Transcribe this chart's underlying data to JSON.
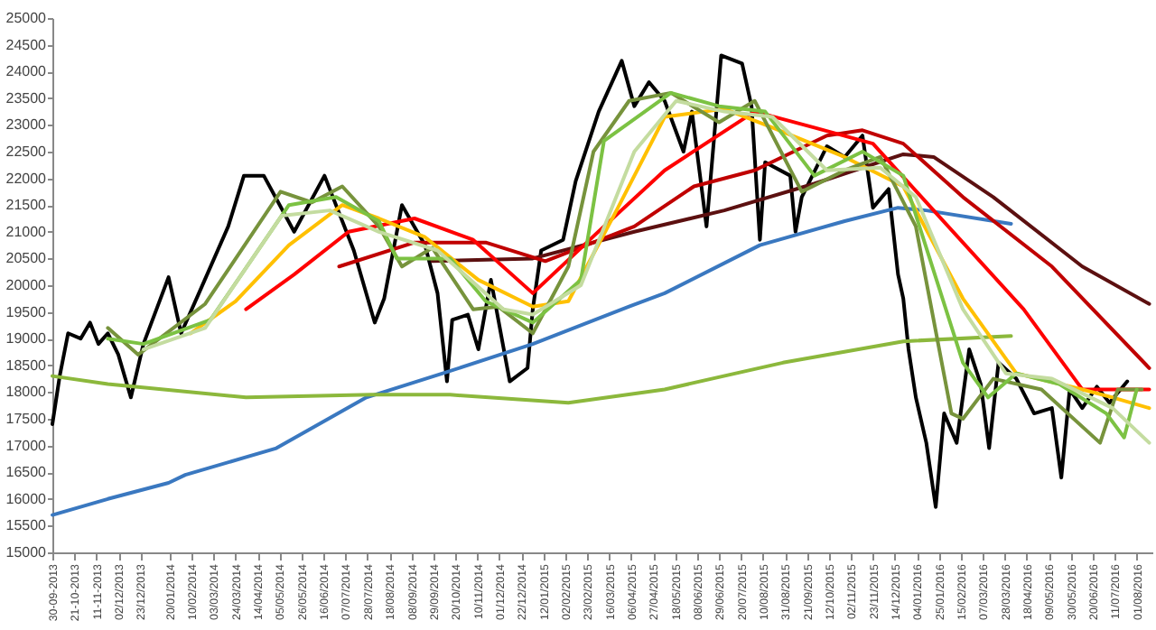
{
  "chart_data": {
    "type": "line",
    "xlim": [
      "2013-09-30",
      "2016-08-16"
    ],
    "ylim": [
      15000,
      25000
    ],
    "yticks": [
      15000,
      15500,
      16000,
      16500,
      17000,
      17500,
      18000,
      18500,
      19000,
      19500,
      20000,
      20500,
      21000,
      21500,
      22000,
      22500,
      23000,
      23500,
      24000,
      24500,
      25000
    ],
    "xticks": [
      {
        "value": "2013-09-30",
        "label": "30-09-2013"
      },
      {
        "value": "2013-10-21",
        "label": "21-10-2013"
      },
      {
        "value": "2013-11-11",
        "label": "11-11-2013"
      },
      {
        "value": "2013-12-02",
        "label": "02/12/2013"
      },
      {
        "value": "2013-12-23",
        "label": "23/12/2013"
      },
      {
        "value": "2014-01-20",
        "label": "20/01/2014"
      },
      {
        "value": "2014-02-10",
        "label": "10/02/2014"
      },
      {
        "value": "2014-03-03",
        "label": "03/03/2014"
      },
      {
        "value": "2014-03-24",
        "label": "24/03/2014"
      },
      {
        "value": "2014-04-14",
        "label": "14/04/2014"
      },
      {
        "value": "2014-05-05",
        "label": "05/05/2014"
      },
      {
        "value": "2014-05-26",
        "label": "26/05/2014"
      },
      {
        "value": "2014-06-16",
        "label": "16/06/2014"
      },
      {
        "value": "2014-07-07",
        "label": "07/07/2014"
      },
      {
        "value": "2014-07-28",
        "label": "28/07/2014"
      },
      {
        "value": "2014-08-18",
        "label": "18/08/2014"
      },
      {
        "value": "2014-09-08",
        "label": "08/09/2014"
      },
      {
        "value": "2014-09-29",
        "label": "29/09/2014"
      },
      {
        "value": "2014-10-20",
        "label": "20/10/2014"
      },
      {
        "value": "2014-11-10",
        "label": "10/11/2014"
      },
      {
        "value": "2014-12-01",
        "label": "01/12/2014"
      },
      {
        "value": "2014-12-22",
        "label": "22/12/2014"
      },
      {
        "value": "2015-01-12",
        "label": "12/01/2015"
      },
      {
        "value": "2015-02-02",
        "label": "02/02/2015"
      },
      {
        "value": "2015-02-23",
        "label": "23/02/2015"
      },
      {
        "value": "2015-03-16",
        "label": "16/03/2015"
      },
      {
        "value": "2015-04-06",
        "label": "06/04/2015"
      },
      {
        "value": "2015-04-27",
        "label": "27/04/2015"
      },
      {
        "value": "2015-05-18",
        "label": "18/05/2015"
      },
      {
        "value": "2015-06-08",
        "label": "08/06/2015"
      },
      {
        "value": "2015-06-29",
        "label": "29/06/2015"
      },
      {
        "value": "2015-07-20",
        "label": "20/07/2015"
      },
      {
        "value": "2015-08-10",
        "label": "10/08/2015"
      },
      {
        "value": "2015-08-31",
        "label": "31/08/2015"
      },
      {
        "value": "2015-09-21",
        "label": "21/09/2015"
      },
      {
        "value": "2015-10-12",
        "label": "12/10/2015"
      },
      {
        "value": "2015-11-02",
        "label": "02/11/2015"
      },
      {
        "value": "2015-11-23",
        "label": "23/11/2015"
      },
      {
        "value": "2015-12-14",
        "label": "14/12/2015"
      },
      {
        "value": "2016-01-04",
        "label": "04/01/2016"
      },
      {
        "value": "2016-01-25",
        "label": "25/01/2016"
      },
      {
        "value": "2016-02-15",
        "label": "15/02/2016"
      },
      {
        "value": "2016-03-07",
        "label": "07/03/2016"
      },
      {
        "value": "2016-03-28",
        "label": "28/03/2016"
      },
      {
        "value": "2016-04-18",
        "label": "18/04/2016"
      },
      {
        "value": "2016-05-09",
        "label": "09/05/2016"
      },
      {
        "value": "2016-05-30",
        "label": "30/05/2016"
      },
      {
        "value": "2016-06-20",
        "label": "20/06/2016"
      },
      {
        "value": "2016-07-11",
        "label": "11/07/2016"
      },
      {
        "value": "2016-08-01",
        "label": "01/08/2016"
      }
    ],
    "series": [
      {
        "color": "#000000",
        "x": [
          "2013-09-30",
          "2013-10-07",
          "2013-10-15",
          "2013-10-27",
          "2013-11-05",
          "2013-11-13",
          "2013-11-22",
          "2013-12-02",
          "2013-12-14",
          "2013-12-26",
          "2014-01-19",
          "2014-01-31",
          "2014-02-17",
          "2014-03-17",
          "2014-04-01",
          "2014-04-20",
          "2014-05-19",
          "2014-06-17",
          "2014-07-04",
          "2014-07-15",
          "2014-08-04",
          "2014-08-13",
          "2014-08-30",
          "2014-09-21",
          "2014-10-03",
          "2014-10-12",
          "2014-10-17",
          "2014-11-01",
          "2014-11-11",
          "2014-11-23",
          "2014-12-11",
          "2014-12-28",
          "2015-01-02",
          "2015-01-10",
          "2015-01-31",
          "2015-02-12",
          "2015-03-06",
          "2015-03-28",
          "2015-04-09",
          "2015-04-23",
          "2015-05-08",
          "2015-05-26",
          "2015-06-03",
          "2015-06-17",
          "2015-07-01",
          "2015-07-21",
          "2015-07-30",
          "2015-08-07",
          "2015-08-12",
          "2015-09-05",
          "2015-09-10",
          "2015-09-16",
          "2015-10-10",
          "2015-10-27",
          "2015-11-13",
          "2015-11-23",
          "2015-12-08",
          "2015-12-17",
          "2015-12-22",
          "2015-12-27",
          "2016-01-03",
          "2016-01-13",
          "2016-01-22",
          "2016-01-30",
          "2016-02-11",
          "2016-02-23",
          "2016-03-05",
          "2016-03-13",
          "2016-03-22",
          "2016-04-08",
          "2016-04-25",
          "2016-05-12",
          "2016-05-21",
          "2016-05-29",
          "2016-06-10",
          "2016-06-24",
          "2016-07-06",
          "2016-07-23"
        ],
        "values": [
          17400,
          18300,
          19100,
          19000,
          19300,
          18900,
          19100,
          18700,
          17900,
          18900,
          20150,
          19100,
          19850,
          21100,
          22050,
          22050,
          21000,
          22050,
          21200,
          20650,
          19300,
          19750,
          21500,
          20750,
          19850,
          18200,
          19350,
          19450,
          18800,
          20100,
          18200,
          18450,
          19550,
          20650,
          20850,
          21950,
          23250,
          24200,
          23350,
          23800,
          23450,
          22500,
          23250,
          21100,
          24300,
          24150,
          23350,
          20850,
          22300,
          22050,
          21000,
          21650,
          22600,
          22400,
          22800,
          21450,
          21800,
          20200,
          19750,
          18800,
          17900,
          17050,
          15850,
          17600,
          17050,
          18800,
          18150,
          16950,
          18550,
          18250,
          17600,
          17700,
          16400,
          18050,
          17700,
          18100,
          17800,
          18200
        ]
      },
      {
        "color": "#3a78c0",
        "x": [
          "2013-09-30",
          "2013-11-22",
          "2014-01-19",
          "2014-02-04",
          "2014-05-02",
          "2014-07-27",
          "2014-10-08",
          "2015-01-02",
          "2015-04-04",
          "2015-05-08",
          "2015-08-07",
          "2015-10-27",
          "2015-12-17",
          "2016-01-13",
          "2016-04-03"
        ],
        "values": [
          15700,
          16000,
          16300,
          16450,
          16950,
          17900,
          18350,
          18900,
          19600,
          19850,
          20750,
          21200,
          21450,
          21400,
          21150
        ]
      },
      {
        "color": "#8cb83c",
        "x": [
          "2013-09-30",
          "2013-11-22",
          "2014-04-03",
          "2014-08-01",
          "2014-10-15",
          "2015-02-05",
          "2015-05-08",
          "2015-08-29",
          "2015-12-22",
          "2016-04-03"
        ],
        "values": [
          18300,
          18150,
          17900,
          17950,
          17950,
          17800,
          18050,
          18550,
          18950,
          19050
        ]
      },
      {
        "color": "#5c1010",
        "x": [
          "2014-09-28",
          "2015-01-02",
          "2015-04-09",
          "2015-07-04",
          "2015-09-28",
          "2015-12-22",
          "2016-01-20",
          "2016-03-17",
          "2016-06-10",
          "2016-08-13"
        ],
        "values": [
          20450,
          20500,
          21000,
          21400,
          21900,
          22450,
          22400,
          21650,
          20350,
          19650
        ]
      },
      {
        "color": "#c00000",
        "x": [
          "2014-07-01",
          "2014-09-11",
          "2014-11-18",
          "2015-01-14",
          "2015-04-09",
          "2015-06-05",
          "2015-08-02",
          "2015-10-10",
          "2015-11-13",
          "2015-12-22",
          "2016-02-17",
          "2016-05-12",
          "2016-08-13"
        ],
        "values": [
          20350,
          20800,
          20800,
          20450,
          21100,
          21850,
          22150,
          22800,
          22900,
          22650,
          21650,
          20350,
          18450
        ]
      },
      {
        "color": "#ff0000",
        "x": [
          "2014-04-03",
          "2014-05-19",
          "2014-07-10",
          "2014-09-11",
          "2014-11-06",
          "2015-01-02",
          "2015-03-11",
          "2015-05-08",
          "2015-08-02",
          "2015-09-28",
          "2015-11-23",
          "2016-01-20",
          "2016-04-15",
          "2016-06-10",
          "2016-08-13"
        ],
        "values": [
          19550,
          20200,
          21000,
          21250,
          20850,
          19850,
          21100,
          22150,
          23250,
          22950,
          22650,
          21400,
          19550,
          18050,
          18050
        ]
      },
      {
        "color": "#ffc000",
        "x": [
          "2014-02-09",
          "2014-03-24",
          "2014-05-14",
          "2014-07-04",
          "2014-08-08",
          "2014-09-21",
          "2014-11-11",
          "2015-01-02",
          "2015-02-05",
          "2015-03-23",
          "2015-05-08",
          "2015-07-04",
          "2015-08-19",
          "2015-10-27",
          "2015-12-22",
          "2016-02-17",
          "2016-04-08",
          "2016-06-10",
          "2016-07-09",
          "2016-08-13"
        ],
        "values": [
          19100,
          19700,
          20750,
          21500,
          21250,
          20900,
          20100,
          19600,
          19700,
          21400,
          23150,
          23300,
          22950,
          22400,
          21850,
          19750,
          18350,
          18050,
          17900,
          17700
        ]
      },
      {
        "color": "#77933c",
        "x": [
          "2013-11-22",
          "2013-12-21",
          "2014-02-23",
          "2014-05-06",
          "2014-06-05",
          "2014-07-04",
          "2014-08-08",
          "2014-08-30",
          "2014-09-28",
          "2014-11-06",
          "2014-11-30",
          "2015-01-02",
          "2015-02-05",
          "2015-03-01",
          "2015-04-04",
          "2015-05-14",
          "2015-06-29",
          "2015-08-02",
          "2015-09-16",
          "2015-10-27",
          "2015-11-30",
          "2016-01-03",
          "2016-02-06",
          "2016-02-17",
          "2016-03-17",
          "2016-05-02",
          "2016-06-27",
          "2016-07-14",
          "2016-08-06"
        ],
        "values": [
          19200,
          18700,
          19650,
          21750,
          21550,
          21850,
          21100,
          20350,
          20700,
          19550,
          19600,
          19100,
          20350,
          22500,
          23450,
          23600,
          23050,
          23450,
          21750,
          22150,
          22400,
          21100,
          17600,
          17500,
          18250,
          18050,
          17050,
          18050,
          18050
        ]
      },
      {
        "color": "#7cc243",
        "x": [
          "2013-11-22",
          "2013-12-26",
          "2014-02-28",
          "2014-05-14",
          "2014-06-28",
          "2014-08-08",
          "2014-08-25",
          "2014-10-15",
          "2014-11-18",
          "2015-01-02",
          "2015-02-17",
          "2015-03-11",
          "2015-05-14",
          "2015-06-29",
          "2015-08-12",
          "2015-09-28",
          "2015-11-13",
          "2015-12-22",
          "2016-02-17",
          "2016-03-12",
          "2016-04-08",
          "2016-05-19",
          "2016-07-03",
          "2016-07-20",
          "2016-08-01"
        ],
        "values": [
          19000,
          18900,
          19350,
          21500,
          21650,
          21200,
          20500,
          20500,
          19700,
          19300,
          20100,
          22700,
          23600,
          23350,
          23250,
          22050,
          22500,
          22050,
          18550,
          17900,
          18350,
          18150,
          17600,
          17150,
          18050
        ]
      },
      {
        "color": "#c4dca0",
        "x": [
          "2013-12-26",
          "2014-02-23",
          "2014-05-07",
          "2014-06-22",
          "2014-08-08",
          "2014-10-03",
          "2014-12-05",
          "2015-01-02",
          "2015-02-17",
          "2015-04-09",
          "2015-05-19",
          "2015-07-04",
          "2015-08-19",
          "2015-10-10",
          "2015-11-30",
          "2016-01-03",
          "2016-02-17",
          "2016-03-29",
          "2016-05-12",
          "2016-07-09",
          "2016-08-13"
        ],
        "values": [
          18800,
          19200,
          21300,
          21400,
          21000,
          20650,
          19550,
          19450,
          20000,
          22500,
          23450,
          23250,
          23150,
          22150,
          22200,
          21650,
          19550,
          18350,
          18250,
          17700,
          17050
        ]
      }
    ]
  }
}
